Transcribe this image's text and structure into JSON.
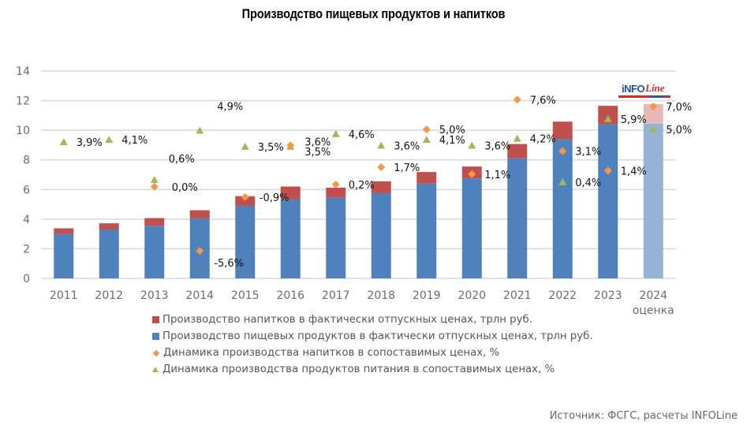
{
  "chart_data": {
    "type": "bar",
    "title": "Производство пищевых продуктов и напитков",
    "xlabel": "",
    "ylabel": "",
    "ylim": [
      0,
      14
    ],
    "yticks": [
      0,
      2,
      4,
      6,
      8,
      10,
      12,
      14
    ],
    "y2lim": [
      -8,
      10.1
    ],
    "grid": true,
    "legend_position": "bottom",
    "stacked": true,
    "categories": [
      "2011",
      "2012",
      "2013",
      "2014",
      "2015",
      "2016",
      "2017",
      "2018",
      "2019",
      "2020",
      "2021",
      "2022",
      "2023",
      "2024"
    ],
    "category_sublabels": [
      "",
      "",
      "",
      "",
      "",
      "",
      "",
      "",
      "",
      "",
      "",
      "",
      "",
      "оценка"
    ],
    "estimate_category": "2024",
    "series": [
      {
        "name": "Производство пищевых продуктов в фактически отпускных ценах, трлн руб.",
        "type": "bar",
        "axis": "primary",
        "color": "#4f81bd",
        "estimate_color": "#95b3d7",
        "values": [
          3.0,
          3.3,
          3.55,
          4.05,
          4.9,
          5.35,
          5.45,
          5.75,
          6.4,
          6.75,
          8.1,
          9.4,
          10.4,
          10.45
        ]
      },
      {
        "name": "Производство напитков в фактически отпускных ценах, трлн руб.",
        "type": "bar",
        "axis": "primary",
        "color": "#c0504d",
        "estimate_color": "#e6b9b8",
        "values": [
          0.38,
          0.42,
          0.52,
          0.55,
          0.65,
          0.85,
          0.67,
          0.8,
          0.78,
          0.8,
          0.97,
          1.18,
          1.25,
          1.32
        ]
      },
      {
        "name": "Динамика производства напитков в сопоставимых ценах, %",
        "type": "scatter",
        "marker": "diamond",
        "axis": "secondary",
        "color": "#f79646",
        "values": [
          null,
          null,
          0.0,
          -5.6,
          -0.9,
          3.6,
          0.2,
          1.7,
          5.0,
          1.1,
          7.6,
          3.1,
          1.4,
          7.0
        ],
        "labels": [
          "",
          "",
          "0,0%",
          "-5,6%",
          "-0,9%",
          "3,6%",
          "0,2%",
          "1,7%",
          "5,0%",
          "1,1%",
          "7,6%",
          "3,1%",
          "1,4%",
          "7,0%"
        ]
      },
      {
        "name": "Динамика производства продуктов питания в сопоставимых ценах, %",
        "type": "scatter",
        "marker": "triangle",
        "axis": "secondary",
        "color": "#9bbb59",
        "values": [
          3.9,
          4.1,
          0.6,
          4.9,
          3.5,
          3.5,
          4.6,
          3.6,
          4.1,
          3.6,
          4.2,
          0.4,
          5.9,
          5.0
        ],
        "labels": [
          "3,9%",
          "4,1%",
          "0,6%",
          "4,9%",
          "3,5%",
          "3,5%",
          "4,6%",
          "3,6%",
          "4,1%",
          "3,6%",
          "4,2%",
          "0,4%",
          "5,9%",
          "5,0%"
        ]
      }
    ],
    "legend": [
      {
        "label": "Производство напитков в фактически отпускных ценах, трлн руб.",
        "color": "#c0504d",
        "marker": "square"
      },
      {
        "label": "Производство пищевых продуктов в фактически отпускных ценах, трлн руб.",
        "color": "#4f81bd",
        "marker": "square"
      },
      {
        "label": "Динамика производства напитков в сопоставимых ценах, %",
        "color": "#f79646",
        "marker": "diamond"
      },
      {
        "label": "Динамика производства продуктов питания в сопоставимых ценах, %",
        "color": "#9bbb59",
        "marker": "triangle"
      }
    ],
    "source": "Источник: ФСГС, расчеты INFOLine"
  },
  "logo": {
    "text_main": "iNFO",
    "text_accent": "Line"
  }
}
